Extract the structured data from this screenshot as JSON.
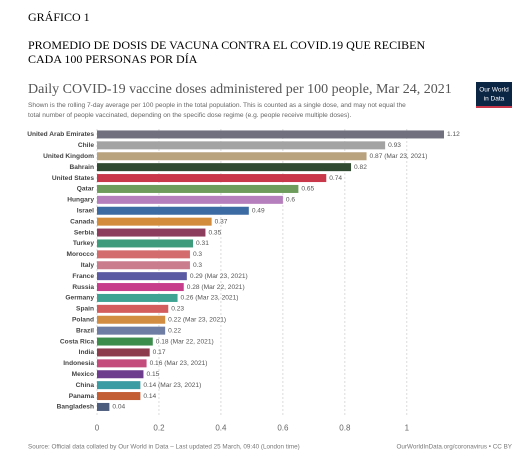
{
  "heading": {
    "label": "GRÁFICO 1",
    "lines": [
      "PROMEDIO   DE DOSIS DE VACUNA CONTRA EL COVID.19 QUE RECIBEN",
      "CADA 100 PERSONAS POR DÍA"
    ]
  },
  "chart_data": {
    "type": "bar",
    "orientation": "horizontal",
    "title": "Daily COVID-19 vaccine doses administered per 100 people, Mar 24, 2021",
    "subtitle": [
      "Shown is the rolling 7-day average per 100 people in the total population. This is counted as a single dose, and may not equal the",
      "total number of people vaccinated, depending on the specific dose regime (e.g. people receive multiple doses)."
    ],
    "logo": [
      "Our World",
      "in Data"
    ],
    "categories": [
      "United Arab Emirates",
      "Chile",
      "United Kingdom",
      "Bahrain",
      "United States",
      "Qatar",
      "Hungary",
      "Israel",
      "Canada",
      "Serbia",
      "Turkey",
      "Morocco",
      "Italy",
      "France",
      "Russia",
      "Germany",
      "Spain",
      "Poland",
      "Brazil",
      "Costa Rica",
      "India",
      "Indonesia",
      "Mexico",
      "China",
      "Panama",
      "Bangladesh"
    ],
    "values": [
      1.12,
      0.93,
      0.87,
      0.82,
      0.74,
      0.65,
      0.6,
      0.49,
      0.37,
      0.35,
      0.31,
      0.3,
      0.3,
      0.29,
      0.28,
      0.26,
      0.23,
      0.22,
      0.22,
      0.18,
      0.17,
      0.16,
      0.15,
      0.14,
      0.14,
      0.04
    ],
    "value_labels": [
      "1.12",
      "0.93",
      "0.87 (Mar 23, 2021)",
      "0.82",
      "0.74",
      "0.65",
      "0.6",
      "0.49",
      "0.37",
      "0.35",
      "0.31",
      "0.3",
      "0.3",
      "0.29 (Mar 23, 2021)",
      "0.28 (Mar 22, 2021)",
      "0.26 (Mar 23, 2021)",
      "0.23",
      "0.22 (Mar 23, 2021)",
      "0.22",
      "0.18 (Mar 22, 2021)",
      "0.17",
      "0.16 (Mar 23, 2021)",
      "0.15",
      "0.14 (Mar 23, 2021)",
      "0.14",
      "0.04"
    ],
    "colors": [
      "#70707f",
      "#a3a3a3",
      "#b9a27e",
      "#2f4a30",
      "#c8384a",
      "#6e9c5c",
      "#b57fbd",
      "#3c6ba3",
      "#d38b3c",
      "#8c3c5c",
      "#3e9c7c",
      "#d36d6d",
      "#c97d8d",
      "#5b5ba3",
      "#c83c8c",
      "#3ea393",
      "#d35d5d",
      "#d38d43",
      "#6d7da3",
      "#3c8c4c",
      "#8c3c4c",
      "#c34c7c",
      "#6d3c8c",
      "#3c9ca3",
      "#c35d33",
      "#4c5c7c"
    ],
    "xlim": [
      0,
      1.12
    ],
    "xticks": [
      0,
      0.2,
      0.4,
      0.6,
      0.8,
      1
    ],
    "grid": true,
    "source": "Source: Official data collated by Our World in Data – Last updated 25 March, 09:40 (London time)",
    "url": "OurWorldInData.org/coronavirus • CC BY"
  }
}
